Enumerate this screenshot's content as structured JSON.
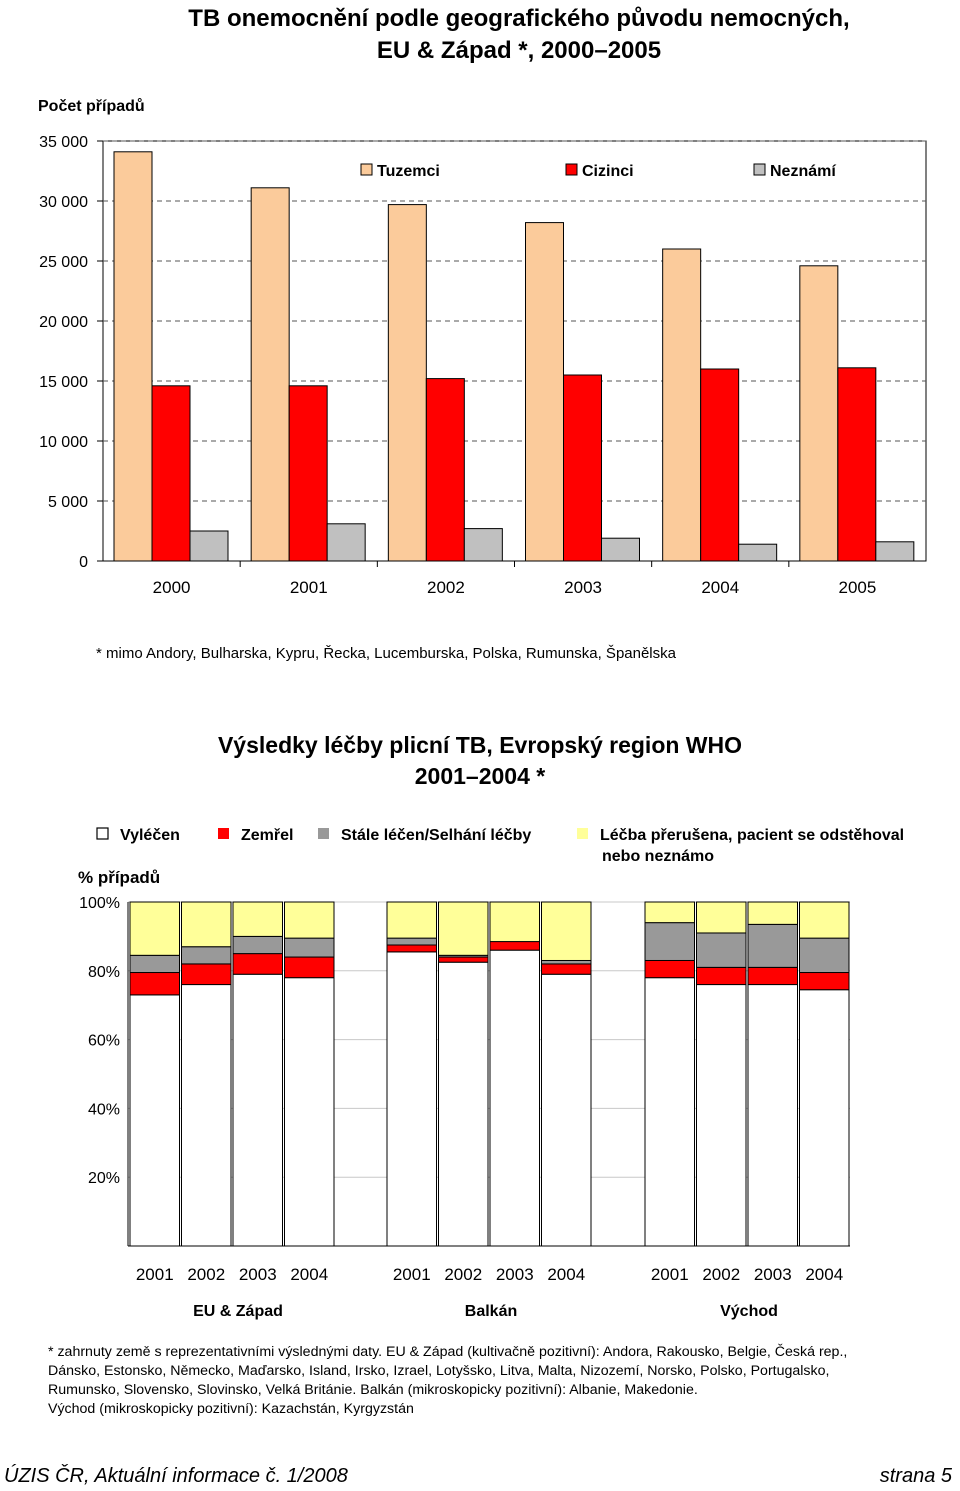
{
  "chart_data": [
    {
      "type": "bar",
      "title_line1": "TB onemocnění podle geografického původu nemocných,",
      "title_line2": "EU & Západ *, 2000–2005",
      "ylabel": "Počet případů",
      "ylim": [
        0,
        35000
      ],
      "yticks": [
        "35 000",
        "30 000",
        "25 000",
        "20 000",
        "15 000",
        "10 000",
        "5 000",
        "0"
      ],
      "grid": "dashed horizontal",
      "legend_position": "top",
      "categories": [
        "2000",
        "2001",
        "2002",
        "2003",
        "2004",
        "2005"
      ],
      "series": [
        {
          "name": "Tuzemci",
          "color": "#FBCB9B",
          "values": [
            34100,
            31100,
            29700,
            28200,
            26000,
            24600
          ]
        },
        {
          "name": "Cizinci",
          "color": "#FF0000",
          "values": [
            14600,
            14600,
            15200,
            15500,
            16000,
            16100
          ]
        },
        {
          "name": "Neznámí",
          "color": "#C0C0C0",
          "values": [
            2500,
            3100,
            2700,
            1900,
            1400,
            1600
          ]
        }
      ],
      "footnote": "* mimo Andory, Bulharska, Kypru, Řecka, Lucemburska, Polska, Rumunska, Španělska"
    },
    {
      "type": "bar",
      "stacked": true,
      "title_line1": "Výsledky léčby plicní TB, Evropský region WHO",
      "title_line2": "2001–2004 *",
      "ylabel": "% případů",
      "ylim": [
        0,
        100
      ],
      "yticks": [
        "100%",
        "80%",
        "60%",
        "40%",
        "20%"
      ],
      "legend_position": "top",
      "series_legend": [
        {
          "name": "Vyléčen",
          "color": "#FFFFFF"
        },
        {
          "name": "Zemřel",
          "color": "#FF0000"
        },
        {
          "name": "Stále léčen/Selhání léčby",
          "color": "#999999"
        },
        {
          "name": "Léčba přerušena, pacient se odstěhoval",
          "name_line2": "nebo neznámo",
          "color": "#FFFF99"
        }
      ],
      "groups": [
        {
          "name": "EU & Západ",
          "years": [
            "2001",
            "2002",
            "2003",
            "2004"
          ],
          "vylecen": [
            73,
            76,
            79,
            78
          ],
          "zemrel": [
            6.5,
            6,
            6,
            6
          ],
          "stale": [
            5,
            5,
            5,
            5.5
          ],
          "prerusena": [
            15.5,
            13,
            10,
            10.5
          ]
        },
        {
          "name": "Balkán",
          "years": [
            "2001",
            "2002",
            "2003",
            "2004"
          ],
          "vylecen": [
            85.5,
            82.5,
            86,
            79
          ],
          "zemrel": [
            2,
            1.5,
            2.5,
            3
          ],
          "stale": [
            2,
            0.5,
            0,
            1
          ],
          "prerusena": [
            10.5,
            15.5,
            11.5,
            17
          ]
        },
        {
          "name": "Východ",
          "years": [
            "2001",
            "2002",
            "2003",
            "2004"
          ],
          "vylecen": [
            78,
            76,
            76,
            74.5
          ],
          "zemrel": [
            5,
            5,
            5,
            5
          ],
          "stale": [
            11,
            10,
            12.5,
            10
          ],
          "prerusena": [
            6,
            9,
            6.5,
            10.5
          ]
        }
      ],
      "footnote_lines": [
        "* zahrnuty země s reprezentativními výslednými daty. EU & Západ (kultivačně pozitivní): Andora, Rakousko, Belgie, Česká rep.,",
        "Dánsko, Estonsko, Německo, Maďarsko, Island, Irsko, Izrael, Lotyšsko, Litva, Malta, Nizozemí, Norsko, Polsko, Portugalsko,",
        "Rumunsko, Slovensko, Slovinsko, Velká Británie. Balkán (mikroskopicky pozitivní): Albanie, Makedonie.",
        "Východ (mikroskopicky pozitivní): Kazachstán, Kyrgyzstán"
      ]
    }
  ],
  "footer": {
    "left": "ÚZIS ČR, Aktuální informace č. 1/2008",
    "right": "strana 5"
  }
}
